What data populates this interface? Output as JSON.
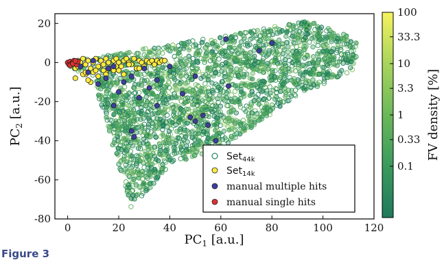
{
  "figure_label": "Figure 3",
  "chart_data": {
    "type": "scatter",
    "xlabel": {
      "main": "PC",
      "sub": "1",
      "unit": " [a.u.]"
    },
    "ylabel": {
      "main": "PC",
      "sub": "2",
      "unit": " [a.u.]"
    },
    "xlim": [
      -5,
      120
    ],
    "ylim": [
      -80,
      25
    ],
    "xticks": [
      "0",
      "20",
      "40",
      "60",
      "80",
      "100",
      "120"
    ],
    "xtick_values": [
      0,
      20,
      40,
      60,
      80,
      100,
      120
    ],
    "yticks": [
      "20",
      "0",
      "-20",
      "-40",
      "-60",
      "-80"
    ],
    "ytick_values": [
      20,
      0,
      -20,
      -40,
      -60,
      -80
    ],
    "colorbar": {
      "label": "FV density [%]",
      "ticks": [
        "100",
        "33.3",
        "10",
        "3.3",
        "1",
        "0.33",
        "0.1"
      ],
      "tick_values": [
        100,
        33.3,
        10,
        3.3,
        1,
        0.33,
        0.1
      ],
      "range": [
        0.01,
        100
      ],
      "scale": "log",
      "colormap": [
        "#1e7a5c",
        "#3a9a5c",
        "#6bb85a",
        "#a8d45c",
        "#e2ec60",
        "#f6f25e"
      ]
    },
    "legend": {
      "placement": "bottom-right",
      "entries": [
        {
          "name": "Set",
          "sub": "44k",
          "marker": "open-circle",
          "color": "#2e8b6e"
        },
        {
          "name": "Set",
          "sub": "14k",
          "marker": "filled-circle",
          "color": "#ffec3d"
        },
        {
          "name": "manual multiple hits",
          "marker": "filled-circle",
          "color": "#3b3fa0"
        },
        {
          "name": "manual single hits",
          "marker": "filled-circle",
          "color": "#e03030"
        }
      ]
    },
    "series": [
      {
        "name": "Set44k",
        "description_region": "dense cloud",
        "x_range": [
          0,
          113
        ],
        "y_range": [
          -78,
          21
        ]
      },
      {
        "name": "Set14k",
        "x": [
          1,
          2,
          3,
          4,
          5,
          5,
          6,
          7,
          7,
          8,
          9,
          9,
          10,
          11,
          12,
          12,
          13,
          14,
          15,
          15,
          16,
          17,
          18,
          18,
          19,
          20,
          21,
          22,
          22,
          23,
          24,
          25,
          26,
          27,
          28,
          29,
          30,
          31,
          32,
          33,
          34,
          35,
          36,
          37,
          38,
          3,
          6,
          8,
          10,
          12,
          14,
          16,
          20,
          24,
          28,
          4,
          7,
          11,
          15,
          19
        ],
        "y": [
          0,
          -1,
          -3,
          1,
          0,
          -2,
          2,
          -1,
          -6,
          1,
          -3,
          -10,
          0,
          2,
          -2,
          -7,
          1,
          -1,
          2,
          -5,
          0,
          -3,
          1,
          -4,
          2,
          0,
          -2,
          1,
          -6,
          2,
          0,
          -1,
          2,
          -3,
          1,
          0,
          -2,
          1,
          0,
          1,
          -1,
          1,
          0,
          1,
          1,
          -8,
          -6,
          -9,
          -5,
          -7,
          -4,
          -3,
          -4,
          -1,
          -3,
          -2,
          -5,
          -4,
          -6,
          -2
        ]
      },
      {
        "name": "manual multiple hits",
        "x": [
          2,
          5,
          8,
          10,
          12,
          15,
          16,
          18,
          20,
          22,
          25,
          26,
          28,
          30,
          32,
          35,
          45,
          48,
          50,
          53,
          55,
          58,
          63,
          75,
          80,
          18,
          25,
          35,
          40,
          62,
          50
        ],
        "y": [
          0,
          -2,
          -5,
          1,
          -11,
          -8,
          -3,
          -22,
          -15,
          -10,
          -35,
          -38,
          -18,
          -3,
          -13,
          -22,
          -16,
          -28,
          -30,
          -27,
          -32,
          -40,
          -12,
          6,
          10,
          -2,
          -7,
          -9,
          -2,
          12,
          -7
        ]
      },
      {
        "name": "manual single hits",
        "x": [
          0,
          0.5,
          1,
          1.5,
          2,
          2.5,
          3,
          3.5,
          4,
          1,
          2,
          3
        ],
        "y": [
          0,
          -1,
          0.5,
          -0.5,
          0,
          1,
          0,
          -1,
          0.5,
          -1.5,
          -0.5,
          0.8
        ]
      }
    ]
  }
}
